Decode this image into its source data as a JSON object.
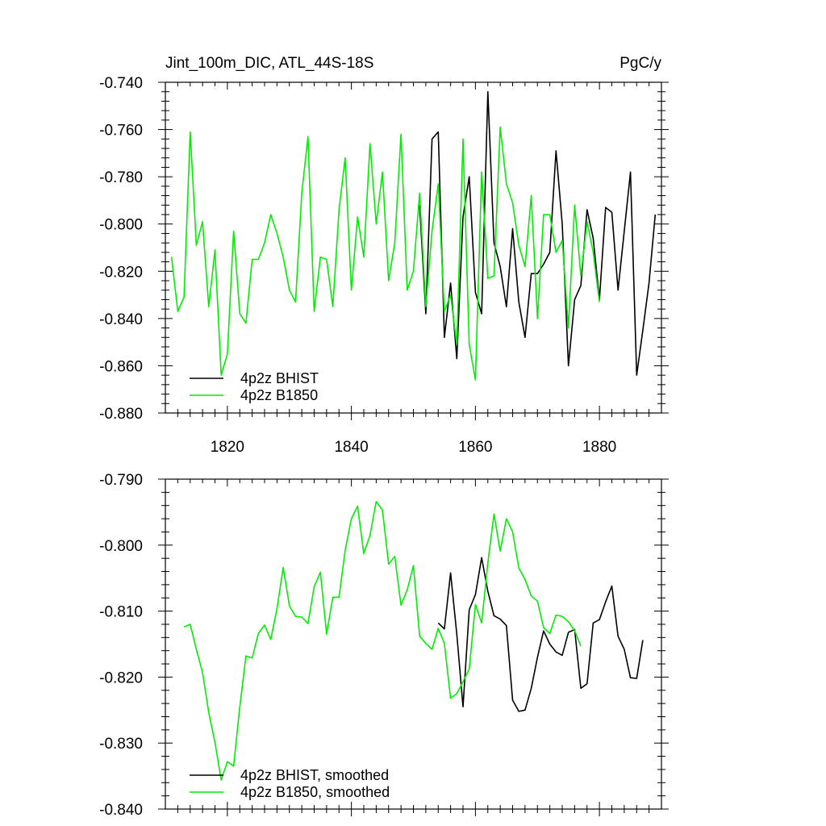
{
  "header": {
    "title_left": "Jint_100m_DIC, ATL_44S-18S",
    "title_right": "PgC/y"
  },
  "colors": {
    "bhist": "#000000",
    "b1850": "#00ee00"
  },
  "chart_data": [
    {
      "type": "line",
      "title": "Jint_100m_DIC, ATL_44S-18S",
      "units": "PgC/y",
      "xlim": [
        1810,
        1890
      ],
      "ylim": [
        -0.88,
        -0.74
      ],
      "xticks": [
        1820,
        1840,
        1860,
        1880
      ],
      "xtick_labels": [
        "1820",
        "1840",
        "1860",
        "1880"
      ],
      "yticks": [
        -0.74,
        -0.76,
        -0.78,
        -0.8,
        -0.82,
        -0.84,
        -0.86,
        -0.88
      ],
      "ytick_labels": [
        "-0.740",
        "-0.760",
        "-0.780",
        "-0.800",
        "-0.820",
        "-0.840",
        "-0.860",
        "-0.880"
      ],
      "legend_position": "bottom-left",
      "series": [
        {
          "name": "4p2z BHIST",
          "color": "#000000",
          "x": [
            1851,
            1852,
            1853,
            1854,
            1855,
            1856,
            1857,
            1858,
            1859,
            1860,
            1861,
            1862,
            1863,
            1864,
            1865,
            1866,
            1867,
            1868,
            1869,
            1870,
            1871,
            1872,
            1873,
            1874,
            1875,
            1876,
            1877,
            1878,
            1879,
            1880,
            1881,
            1882,
            1883,
            1884,
            1885,
            1886,
            1887,
            1888,
            1889
          ],
          "y": [
            -0.792,
            -0.838,
            -0.764,
            -0.761,
            -0.848,
            -0.825,
            -0.857,
            -0.797,
            -0.78,
            -0.829,
            -0.838,
            -0.744,
            -0.808,
            -0.818,
            -0.835,
            -0.802,
            -0.833,
            -0.848,
            -0.821,
            -0.821,
            -0.817,
            -0.812,
            -0.769,
            -0.8,
            -0.86,
            -0.832,
            -0.826,
            -0.794,
            -0.806,
            -0.832,
            -0.793,
            -0.795,
            -0.828,
            -0.803,
            -0.778,
            -0.864,
            -0.845,
            -0.825,
            -0.796
          ]
        },
        {
          "name": "4p2z B1850",
          "color": "#00ee00",
          "x": [
            1811,
            1812,
            1813,
            1814,
            1815,
            1816,
            1817,
            1818,
            1819,
            1820,
            1821,
            1822,
            1823,
            1824,
            1825,
            1826,
            1827,
            1828,
            1829,
            1830,
            1831,
            1832,
            1833,
            1834,
            1835,
            1836,
            1837,
            1838,
            1839,
            1840,
            1841,
            1842,
            1843,
            1844,
            1845,
            1846,
            1847,
            1848,
            1849,
            1850,
            1851,
            1852,
            1853,
            1854,
            1855,
            1856,
            1857,
            1858,
            1859,
            1860,
            1861,
            1862,
            1863,
            1864,
            1865,
            1866,
            1867,
            1868,
            1869,
            1870,
            1871,
            1872,
            1873,
            1874,
            1875,
            1876,
            1877,
            1878,
            1879,
            1880
          ],
          "y": [
            -0.814,
            -0.837,
            -0.831,
            -0.761,
            -0.809,
            -0.799,
            -0.835,
            -0.811,
            -0.864,
            -0.855,
            -0.803,
            -0.838,
            -0.842,
            -0.815,
            -0.815,
            -0.808,
            -0.796,
            -0.804,
            -0.814,
            -0.828,
            -0.833,
            -0.787,
            -0.763,
            -0.837,
            -0.814,
            -0.815,
            -0.835,
            -0.794,
            -0.772,
            -0.828,
            -0.797,
            -0.814,
            -0.766,
            -0.8,
            -0.778,
            -0.824,
            -0.808,
            -0.762,
            -0.828,
            -0.82,
            -0.787,
            -0.835,
            -0.803,
            -0.783,
            -0.837,
            -0.83,
            -0.851,
            -0.764,
            -0.851,
            -0.866,
            -0.778,
            -0.823,
            -0.822,
            -0.759,
            -0.783,
            -0.791,
            -0.809,
            -0.818,
            -0.788,
            -0.84,
            -0.796,
            -0.796,
            -0.812,
            -0.807,
            -0.844,
            -0.792,
            -0.822,
            -0.799,
            -0.812,
            -0.833
          ]
        }
      ]
    },
    {
      "type": "line",
      "xlim": [
        1810,
        1890
      ],
      "ylim": [
        -0.84,
        -0.79
      ],
      "xticks": [
        1820,
        1840,
        1860,
        1880
      ],
      "yticks": [
        -0.79,
        -0.8,
        -0.81,
        -0.82,
        -0.83,
        -0.84
      ],
      "ytick_labels": [
        "-0.790",
        "-0.800",
        "-0.810",
        "-0.820",
        "-0.830",
        "-0.840"
      ],
      "legend_position": "bottom-left",
      "series": [
        {
          "name": "4p2z BHIST, smoothed",
          "color": "#000000",
          "x": [
            1854,
            1855,
            1856,
            1857,
            1858,
            1859,
            1860,
            1861,
            1862,
            1863,
            1864,
            1865,
            1866,
            1867,
            1868,
            1869,
            1870,
            1871,
            1872,
            1873,
            1874,
            1875,
            1876,
            1877,
            1878,
            1879,
            1880,
            1881,
            1882,
            1883,
            1884,
            1885,
            1886,
            1887
          ],
          "y": [
            -0.8118,
            -0.8127,
            -0.8042,
            -0.8135,
            -0.8245,
            -0.8098,
            -0.8075,
            -0.8019,
            -0.807,
            -0.8107,
            -0.8112,
            -0.8122,
            -0.8235,
            -0.8252,
            -0.825,
            -0.8217,
            -0.817,
            -0.813,
            -0.815,
            -0.8162,
            -0.8167,
            -0.8132,
            -0.8128,
            -0.8217,
            -0.821,
            -0.8118,
            -0.8113,
            -0.8086,
            -0.8062,
            -0.8138,
            -0.8158,
            -0.8201,
            -0.8202,
            -0.8144
          ]
        },
        {
          "name": "4p2z B1850, smoothed",
          "color": "#00ee00",
          "x": [
            1813,
            1814,
            1815,
            1816,
            1817,
            1818,
            1819,
            1820,
            1821,
            1822,
            1823,
            1824,
            1825,
            1826,
            1827,
            1828,
            1829,
            1830,
            1831,
            1832,
            1833,
            1834,
            1835,
            1836,
            1837,
            1838,
            1839,
            1840,
            1841,
            1842,
            1843,
            1844,
            1845,
            1846,
            1847,
            1848,
            1849,
            1850,
            1851,
            1852,
            1853,
            1854,
            1855,
            1856,
            1857,
            1858,
            1859,
            1860,
            1861,
            1862,
            1863,
            1864,
            1865,
            1866,
            1867,
            1868,
            1869,
            1870,
            1871,
            1872,
            1873,
            1874,
            1875,
            1876,
            1877
          ],
          "y": [
            -0.8124,
            -0.812,
            -0.8158,
            -0.8193,
            -0.8254,
            -0.8299,
            -0.8356,
            -0.8328,
            -0.8335,
            -0.8245,
            -0.8168,
            -0.8171,
            -0.8134,
            -0.8121,
            -0.8143,
            -0.8096,
            -0.8034,
            -0.8092,
            -0.8108,
            -0.8109,
            -0.8119,
            -0.8063,
            -0.8041,
            -0.8135,
            -0.8079,
            -0.8079,
            -0.8008,
            -0.796,
            -0.7941,
            -0.8013,
            -0.7985,
            -0.7934,
            -0.7947,
            -0.8029,
            -0.8017,
            -0.8091,
            -0.8068,
            -0.8031,
            -0.8138,
            -0.8149,
            -0.8158,
            -0.8126,
            -0.8149,
            -0.8232,
            -0.8225,
            -0.8207,
            -0.8188,
            -0.809,
            -0.8118,
            -0.8027,
            -0.7953,
            -0.8009,
            -0.796,
            -0.798,
            -0.8035,
            -0.8052,
            -0.8077,
            -0.8085,
            -0.8125,
            -0.8134,
            -0.8106,
            -0.8108,
            -0.8116,
            -0.813,
            -0.8153
          ]
        }
      ]
    }
  ]
}
